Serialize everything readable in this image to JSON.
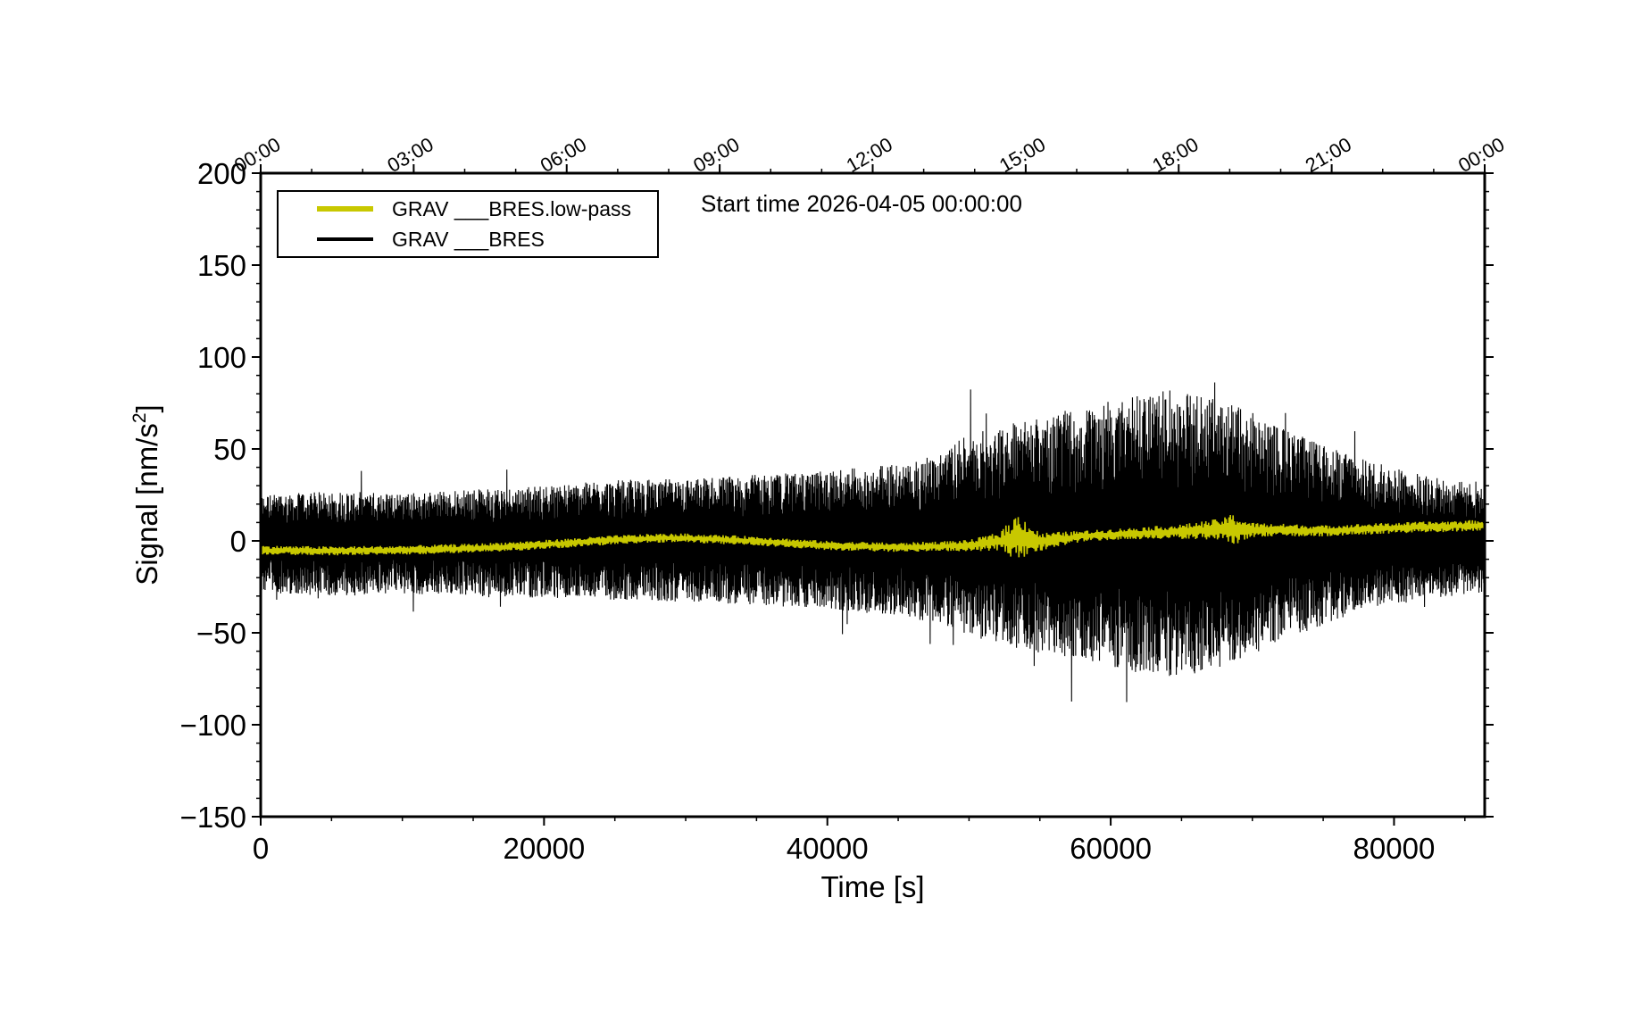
{
  "chart_data": {
    "type": "line",
    "annotation": "Start time 2026-04-05 00:00:00",
    "xlabel": "Time [s]",
    "ylabel_main": "Signal [nm/s",
    "ylabel_sup": "2",
    "ylabel_close": "]",
    "xlim": [
      0,
      86400
    ],
    "ylim": [
      -150,
      200
    ],
    "x_ticks": [
      0,
      20000,
      40000,
      60000,
      80000
    ],
    "x_tick_labels": [
      "0",
      "20000",
      "40000",
      "60000",
      "80000"
    ],
    "y_ticks": [
      -150,
      -100,
      -50,
      0,
      50,
      100,
      150,
      200
    ],
    "y_tick_labels": [
      "−150",
      "−100",
      "−50",
      "0",
      "50",
      "100",
      "150",
      "200"
    ],
    "top_ticks_seconds": [
      0,
      10800,
      21600,
      32400,
      43200,
      54000,
      64800,
      75600,
      86400
    ],
    "top_tick_labels": [
      "00:00",
      "03:00",
      "06:00",
      "09:00",
      "12:00",
      "15:00",
      "18:00",
      "21:00",
      "00:00"
    ],
    "grid": false,
    "legend_position": "top-left",
    "legend": [
      {
        "label": "GRAV ___BRES.low-pass",
        "color": "#c8c800"
      },
      {
        "label": "GRAV ___BRES",
        "color": "#000000"
      }
    ],
    "series": [
      {
        "name": "GRAV ___BRES",
        "color": "#000000",
        "style": "dense noise envelope",
        "x": [
          0,
          5000,
          10000,
          15000,
          20000,
          25000,
          30000,
          35000,
          40000,
          45000,
          48000,
          50000,
          52000,
          54000,
          56000,
          58000,
          60000,
          62000,
          64000,
          66000,
          68000,
          70000,
          72000,
          75000,
          78000,
          82000,
          86400
        ],
        "upper": [
          25,
          27,
          26,
          28,
          30,
          33,
          34,
          36,
          38,
          42,
          48,
          58,
          62,
          66,
          70,
          72,
          76,
          80,
          82,
          80,
          76,
          70,
          62,
          52,
          44,
          36,
          30
        ],
        "lower": [
          -28,
          -30,
          -29,
          -30,
          -31,
          -32,
          -33,
          -35,
          -37,
          -41,
          -45,
          -52,
          -56,
          -60,
          -62,
          -64,
          -68,
          -72,
          -74,
          -72,
          -68,
          -62,
          -54,
          -46,
          -38,
          -32,
          -28
        ]
      },
      {
        "name": "GRAV ___BRES.low-pass",
        "color": "#c8c800",
        "x": [
          0,
          5000,
          10000,
          15000,
          20000,
          25000,
          28000,
          30000,
          35000,
          40000,
          45000,
          50000,
          52000,
          53000,
          53500,
          54000,
          55000,
          58000,
          60000,
          65000,
          68000,
          68500,
          70000,
          75000,
          80000,
          86400
        ],
        "y": [
          -5,
          -5.5,
          -5,
          -4,
          -2,
          0.5,
          1.5,
          1.5,
          0,
          -2.5,
          -3.5,
          -2.5,
          -0.5,
          1,
          2,
          1.5,
          -0.5,
          2.5,
          3.5,
          5,
          6.5,
          6,
          6,
          5.5,
          7,
          8.5
        ],
        "burst_amplitude": [
          2.5,
          2.5,
          2.5,
          2.5,
          2.5,
          2.5,
          2.5,
          2.5,
          2.5,
          2.5,
          2.5,
          3,
          5,
          10,
          14,
          10,
          5,
          3,
          3,
          4,
          6,
          9,
          4,
          3,
          3,
          3
        ]
      }
    ]
  }
}
